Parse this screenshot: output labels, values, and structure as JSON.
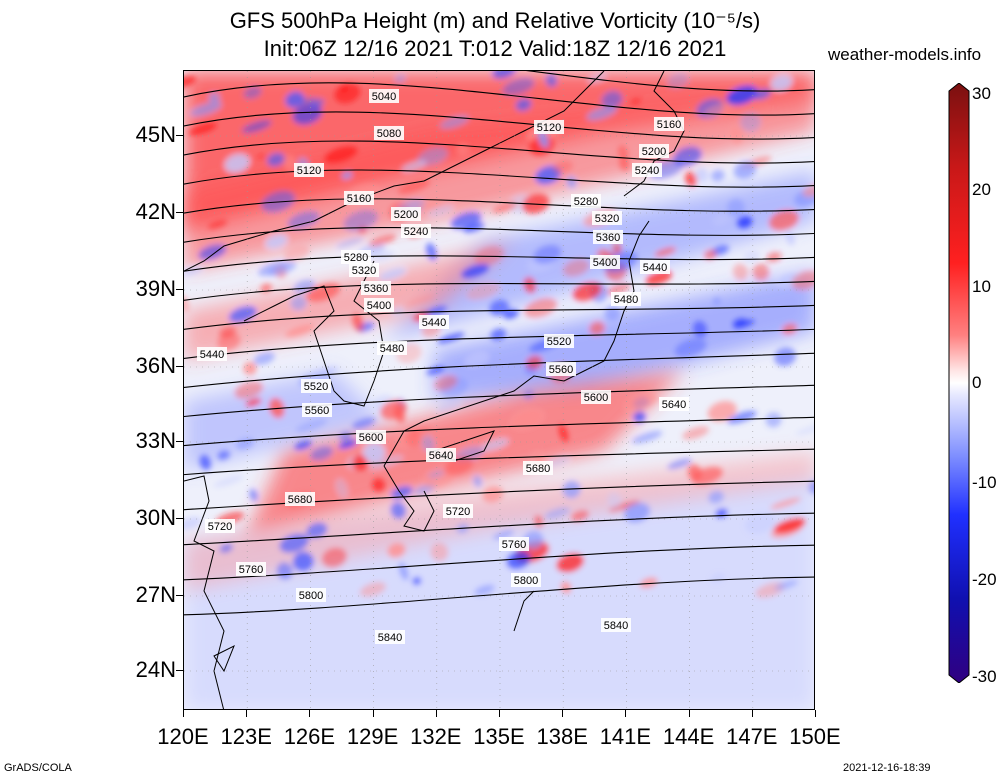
{
  "title_line1": "GFS 500hPa Height (m) and Relative Vorticity (10⁻⁵/s)",
  "title_line2": "Init:06Z 12/16 2021 T:012 Valid:18Z 12/16 2021",
  "site": "weather-models.info",
  "lat_labels": [
    "45N",
    "42N",
    "39N",
    "36N",
    "33N",
    "30N",
    "27N",
    "24N"
  ],
  "lon_labels": [
    "120E",
    "123E",
    "126E",
    "129E",
    "132E",
    "135E",
    "138E",
    "141E",
    "144E",
    "147E",
    "150E"
  ],
  "colorbar": {
    "labels": [
      "30",
      "20",
      "10",
      "0",
      "-10",
      "-20",
      "-30"
    ],
    "colors": [
      "#7a1010",
      "#c81818",
      "#ff2020",
      "#ff8080",
      "#ffe6e6",
      "#ffffff",
      "#e6e8ff",
      "#8090ff",
      "#2030ff",
      "#1010b0",
      "#300080"
    ]
  },
  "contours": [
    {
      "label": "5040"
    },
    {
      "label": "5080"
    },
    {
      "label": "5120"
    },
    {
      "label": "5120"
    },
    {
      "label": "5160"
    },
    {
      "label": "5160"
    },
    {
      "label": "5200"
    },
    {
      "label": "5200"
    },
    {
      "label": "5240"
    },
    {
      "label": "5240"
    },
    {
      "label": "5280"
    },
    {
      "label": "5280"
    },
    {
      "label": "5320"
    },
    {
      "label": "5320"
    },
    {
      "label": "5360"
    },
    {
      "label": "5360"
    },
    {
      "label": "5400"
    },
    {
      "label": "5400"
    },
    {
      "label": "5440"
    },
    {
      "label": "5440"
    },
    {
      "label": "5440"
    },
    {
      "label": "5480"
    },
    {
      "label": "5480"
    },
    {
      "label": "5520"
    },
    {
      "label": "5520"
    },
    {
      "label": "5560"
    },
    {
      "label": "5560"
    },
    {
      "label": "5600"
    },
    {
      "label": "5600"
    },
    {
      "label": "5640"
    },
    {
      "label": "5640"
    },
    {
      "label": "5680"
    },
    {
      "label": "5680"
    },
    {
      "label": "5720"
    },
    {
      "label": "5720"
    },
    {
      "label": "5760"
    },
    {
      "label": "5760"
    },
    {
      "label": "5800"
    },
    {
      "label": "5800"
    },
    {
      "label": "5840"
    },
    {
      "label": "5840"
    }
  ],
  "footer_left": "GrADS/COLA",
  "footer_right": "2021-12-16-18:39"
}
